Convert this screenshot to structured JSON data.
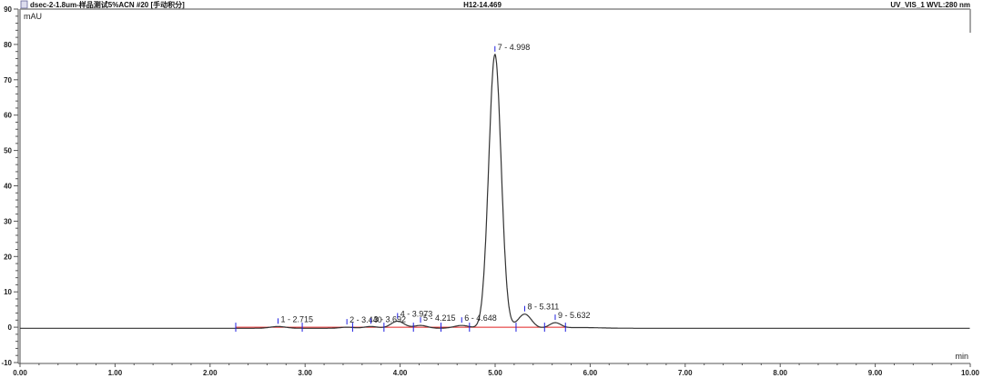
{
  "header": {
    "title": "dsec-2-1.8um-样品测试5%ACN #20 [手动积分]",
    "center": "H12-14.469",
    "right": "UV_VIS_1 WVL:280 nm",
    "icon": "document-icon"
  },
  "chart_data": {
    "type": "line",
    "title": "",
    "xlabel": "min",
    "ylabel": "mAU",
    "xlim": [
      0,
      10
    ],
    "ylim": [
      -10,
      90
    ],
    "xticks": [
      "0.00",
      "1.00",
      "2.00",
      "3.00",
      "4.00",
      "5.00",
      "6.00",
      "7.00",
      "8.00",
      "9.00",
      "10.00"
    ],
    "yticks": [
      "-10",
      "0",
      "10",
      "20",
      "30",
      "40",
      "50",
      "60",
      "70",
      "80",
      "90"
    ],
    "grid": false,
    "colors": {
      "trace": "#333333",
      "baseline": "#e02020",
      "marker": "#2020e0"
    },
    "peaks": [
      {
        "label": "1 - 2.715",
        "rt": 2.715,
        "height": 0.5
      },
      {
        "label": "2 - 3.440",
        "rt": 3.44,
        "height": 0.3
      },
      {
        "label": "3 - 3.692",
        "rt": 3.692,
        "height": 0.5
      },
      {
        "label": "4 - 3.973",
        "rt": 3.973,
        "height": 2.0
      },
      {
        "label": "5 - 4.215",
        "rt": 4.215,
        "height": 0.8
      },
      {
        "label": "6 - 4.648",
        "rt": 4.648,
        "height": 0.8
      },
      {
        "label": "7 - 4.998",
        "rt": 4.998,
        "height": 77.5
      },
      {
        "label": "8 - 5.311",
        "rt": 5.311,
        "height": 4.0
      },
      {
        "label": "9 - 5.632",
        "rt": 5.632,
        "height": 1.5
      }
    ]
  }
}
